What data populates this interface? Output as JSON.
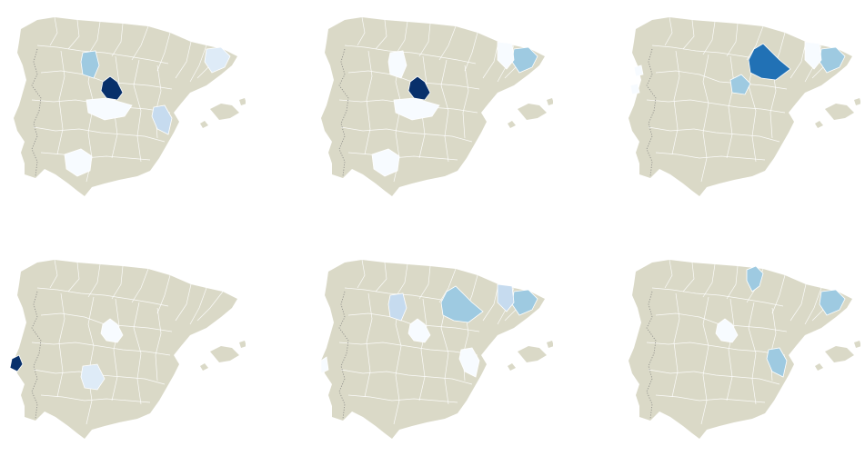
{
  "colors": {
    "background": "#ffffff",
    "land": "#dad9c7",
    "internal_borders": "#ffffff",
    "country_border": "#777777",
    "scale": [
      "#f7fbff",
      "#deebf7",
      "#c6dbef",
      "#9ecae1",
      "#6baed6",
      "#2171b5",
      "#08306b"
    ]
  },
  "maps": [
    {
      "id": "map-1",
      "highlighted_regions": [
        {
          "region": "madrid",
          "color": "#08306b"
        },
        {
          "region": "toledo",
          "color": "#f7fbff"
        },
        {
          "region": "valladolid",
          "color": "#9ecae1"
        },
        {
          "region": "barcelona",
          "color": "#deebf7"
        },
        {
          "region": "valencia",
          "color": "#c6dbef"
        },
        {
          "region": "sevilla",
          "color": "#f7fbff"
        }
      ]
    },
    {
      "id": "map-2",
      "highlighted_regions": [
        {
          "region": "madrid",
          "color": "#08306b"
        },
        {
          "region": "toledo",
          "color": "#f7fbff"
        },
        {
          "region": "valladolid",
          "color": "#f7fbff"
        },
        {
          "region": "barcelona",
          "color": "#9ecae1"
        },
        {
          "region": "lleida",
          "color": "#f7fbff"
        },
        {
          "region": "sevilla",
          "color": "#f7fbff"
        }
      ]
    },
    {
      "id": "map-3",
      "highlighted_regions": [
        {
          "region": "zaragoza",
          "color": "#2171b5"
        },
        {
          "region": "barcelona",
          "color": "#9ecae1"
        },
        {
          "region": "guadalajara",
          "color": "#9ecae1"
        },
        {
          "region": "lleida",
          "color": "#f7fbff"
        },
        {
          "region": "porto",
          "color": "#f7fbff"
        },
        {
          "region": "coimbra",
          "color": "#f7fbff"
        }
      ]
    },
    {
      "id": "map-4",
      "highlighted_regions": [
        {
          "region": "lisboa",
          "color": "#08306b"
        },
        {
          "region": "madrid",
          "color": "#f7fbff"
        },
        {
          "region": "cordoba",
          "color": "#deebf7"
        }
      ]
    },
    {
      "id": "map-5",
      "highlighted_regions": [
        {
          "region": "zaragoza",
          "color": "#9ecae1"
        },
        {
          "region": "barcelona",
          "color": "#9ecae1"
        },
        {
          "region": "lleida",
          "color": "#c6dbef"
        },
        {
          "region": "valladolid",
          "color": "#c6dbef"
        },
        {
          "region": "madrid",
          "color": "#f7fbff"
        },
        {
          "region": "valencia",
          "color": "#f7fbff"
        },
        {
          "region": "setubal",
          "color": "#f7fbff"
        }
      ]
    },
    {
      "id": "map-6",
      "highlighted_regions": [
        {
          "region": "navarra",
          "color": "#9ecae1"
        },
        {
          "region": "barcelona",
          "color": "#9ecae1"
        },
        {
          "region": "madrid",
          "color": "#f7fbff"
        },
        {
          "region": "valencia",
          "color": "#9ecae1"
        }
      ]
    }
  ]
}
